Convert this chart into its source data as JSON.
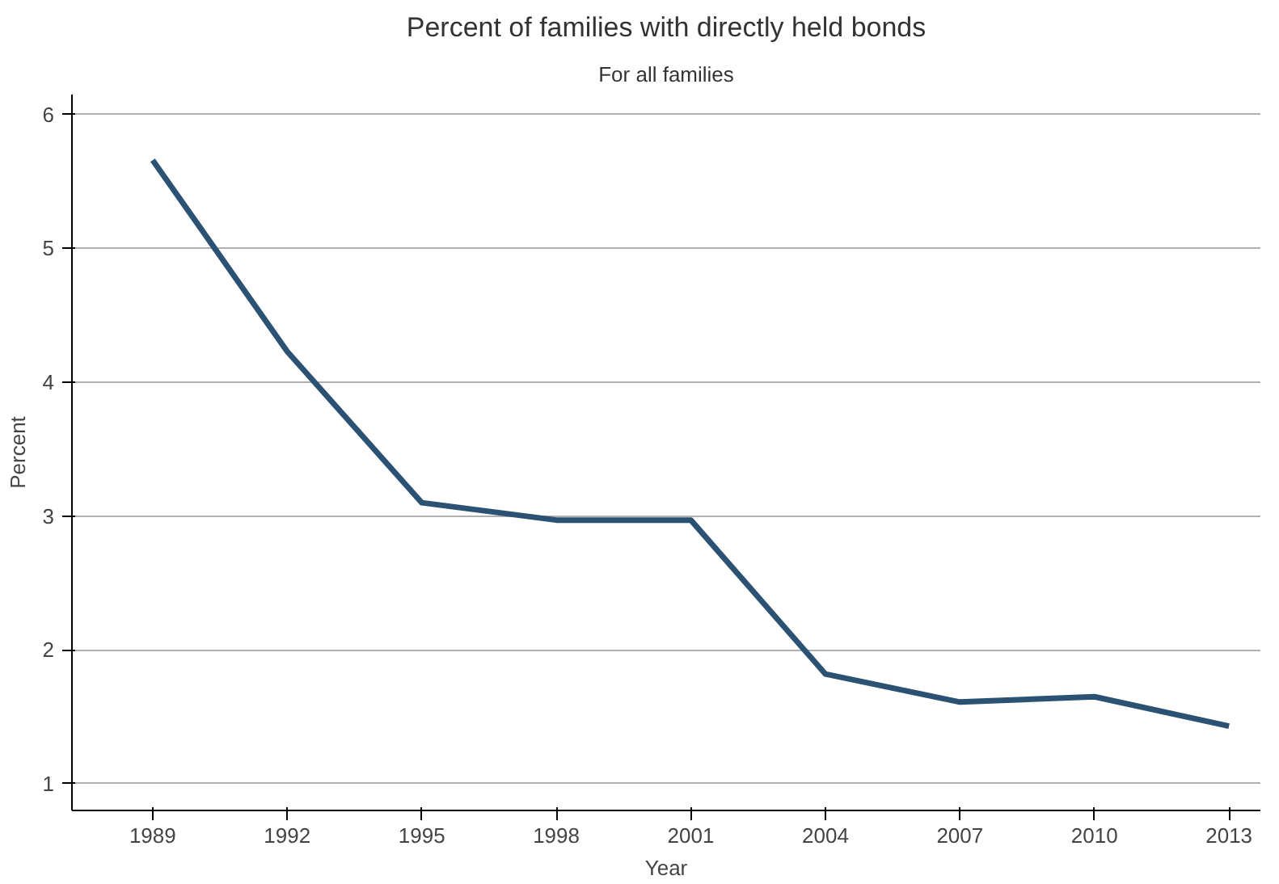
{
  "chart_data": {
    "type": "line",
    "title": "Percent of families with directly held bonds",
    "subtitle": "For all families",
    "xlabel": "Year",
    "ylabel": "Percent",
    "x": [
      1989,
      1992,
      1995,
      1998,
      2001,
      2004,
      2007,
      2010,
      2013
    ],
    "series": [
      {
        "color": "#2b5173",
        "values": [
          5.66,
          4.23,
          3.1,
          2.97,
          2.97,
          1.82,
          1.61,
          1.65,
          1.43
        ]
      }
    ],
    "xlim": [
      1987.2,
      2013.7
    ],
    "ylim": [
      0.8,
      6.15
    ],
    "xticks": [
      1989,
      1992,
      1995,
      1998,
      2001,
      2004,
      2007,
      2010,
      2013
    ],
    "yticks": [
      1,
      2,
      3,
      4,
      5,
      6
    ],
    "grid": "y"
  }
}
